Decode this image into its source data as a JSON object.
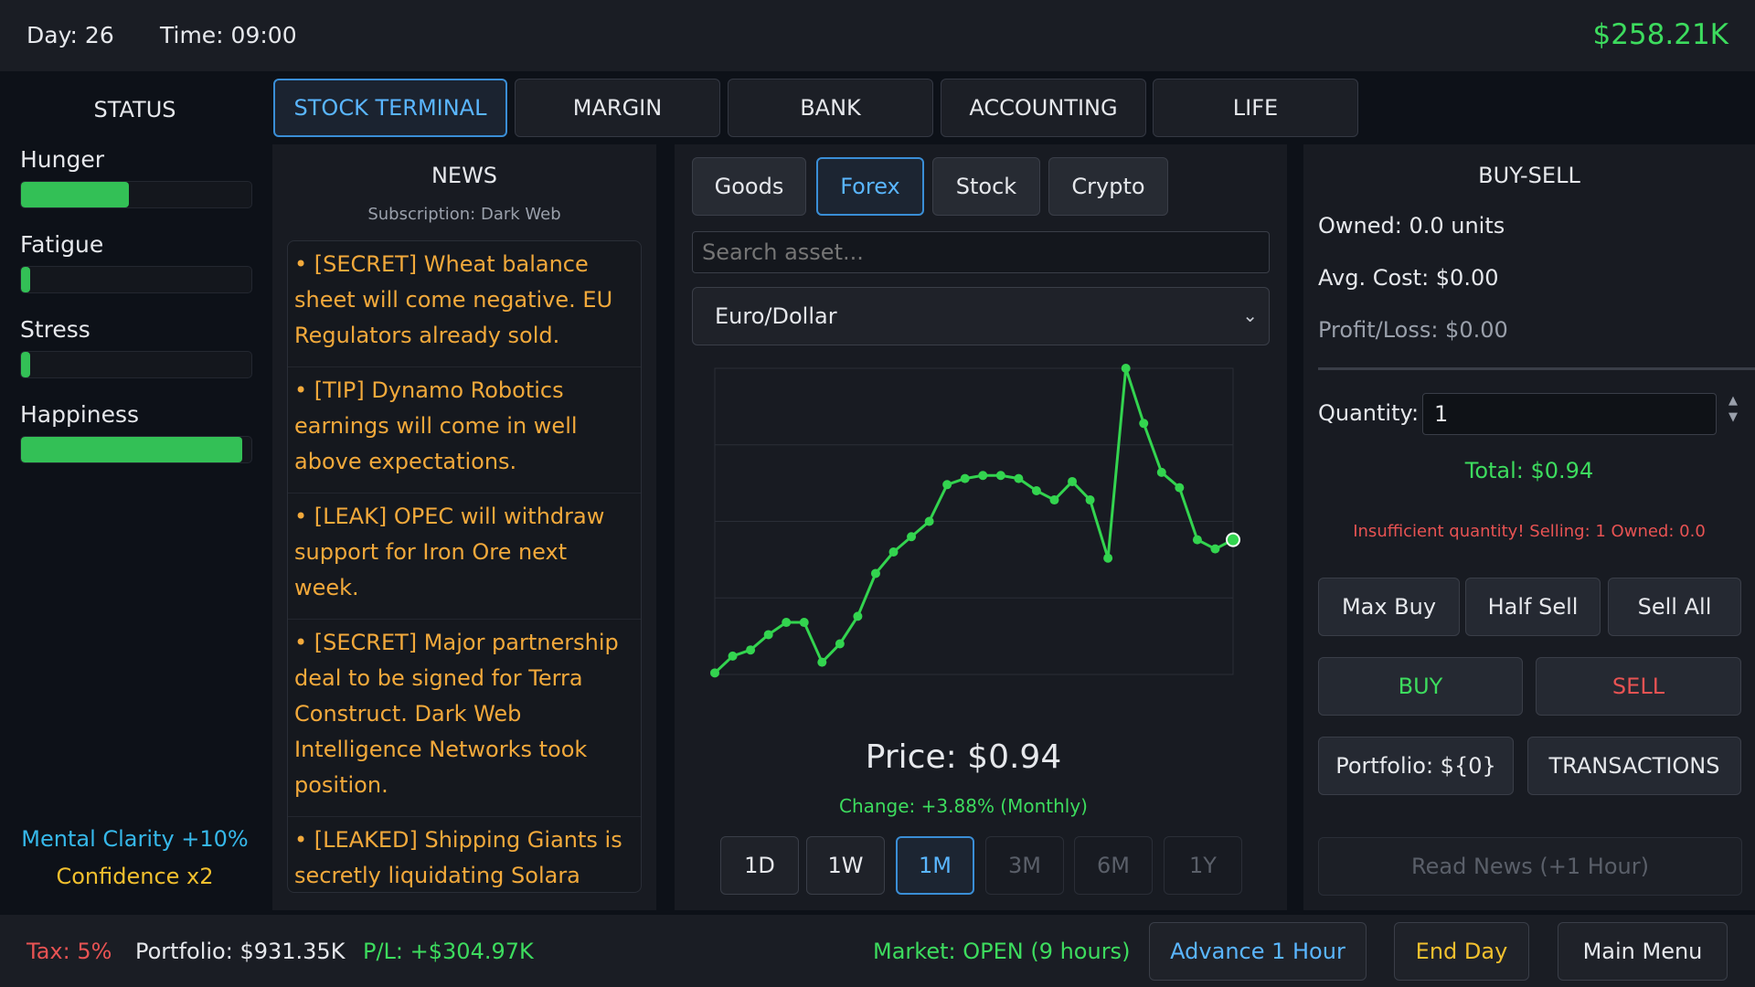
{
  "topbar": {
    "day": "Day: 26",
    "time": "Time: 09:00",
    "money": "$258.21K"
  },
  "status": {
    "title": "STATUS",
    "stats": [
      {
        "label": "Hunger",
        "value": 0.47
      },
      {
        "label": "Fatigue",
        "value": 0.04
      },
      {
        "label": "Stress",
        "value": 0.04
      },
      {
        "label": "Happiness",
        "value": 0.96
      }
    ],
    "buff_clarity": "Mental Clarity +10%",
    "buff_confidence": "Confidence x2"
  },
  "tabs": [
    "STOCK TERMINAL",
    "MARGIN",
    "BANK",
    "ACCOUNTING",
    "LIFE"
  ],
  "news": {
    "title": "NEWS",
    "subscription": "Subscription: Dark Web",
    "items": [
      "• [SECRET] Wheat balance sheet will come negative. EU Regulators already sold.",
      "• [TIP] Dynamo Robotics earnings will come in well above expectations.",
      "• [LEAK] OPEC will withdraw support for Iron Ore next week.",
      "• [SECRET] Major partnership deal to be signed for Terra Construct. Dark Web Intelligence Networks took position.",
      "• [LEAKED] Shipping Giants is secretly liquidating Solara Energy positions."
    ]
  },
  "market": {
    "categories": [
      "Goods",
      "Forex",
      "Stock",
      "Crypto"
    ],
    "active_category": "Forex",
    "search_placeholder": "Search asset...",
    "selected_asset": "Euro/Dollar",
    "price": "Price: $0.94",
    "change": "Change: +3.88% (Monthly)",
    "timeframes": [
      "1D",
      "1W",
      "1M",
      "3M",
      "6M",
      "1Y"
    ],
    "active_timeframe": "1M",
    "line_color": "#33d44f"
  },
  "chart_data": {
    "type": "line",
    "title": "",
    "xlabel": "",
    "ylabel": "",
    "grid": true,
    "values": [
      0.5,
      6.0,
      8.0,
      13.0,
      17.0,
      17.0,
      4.0,
      10.0,
      19.0,
      33.0,
      40.0,
      45.0,
      50.0,
      62.0,
      64.0,
      65.0,
      65.0,
      64.0,
      60.0,
      57.0,
      63.0,
      57.0,
      38.0,
      100.0,
      82.0,
      66.0,
      61.0,
      44.0,
      41.0,
      44.0
    ],
    "ylim": [
      0,
      100
    ]
  },
  "trade": {
    "title": "BUY-SELL",
    "owned": "Owned: 0.0 units",
    "avg_cost": "Avg. Cost: $0.00",
    "profit_loss": "Profit/Loss: $0.00",
    "quantity_label": "Quantity:",
    "quantity_value": "1",
    "total": "Total: $0.94",
    "warning": "Insufficient quantity! Selling: 1 Owned: 0.0",
    "max_buy": "Max Buy",
    "half_sell": "Half Sell",
    "sell_all": "Sell All",
    "buy": "BUY",
    "sell": "SELL",
    "portfolio": "Portfolio: ${0}",
    "transactions": "TRANSACTIONS",
    "read_news": "Read News (+1 Hour)"
  },
  "bottombar": {
    "tax": "Tax: 5%",
    "portfolio": "Portfolio: $931.35K",
    "pl": "P/L: +$304.97K",
    "market_status": "Market: OPEN (9 hours)",
    "advance": "Advance 1 Hour",
    "end_day": "End Day",
    "main_menu": "Main Menu"
  }
}
